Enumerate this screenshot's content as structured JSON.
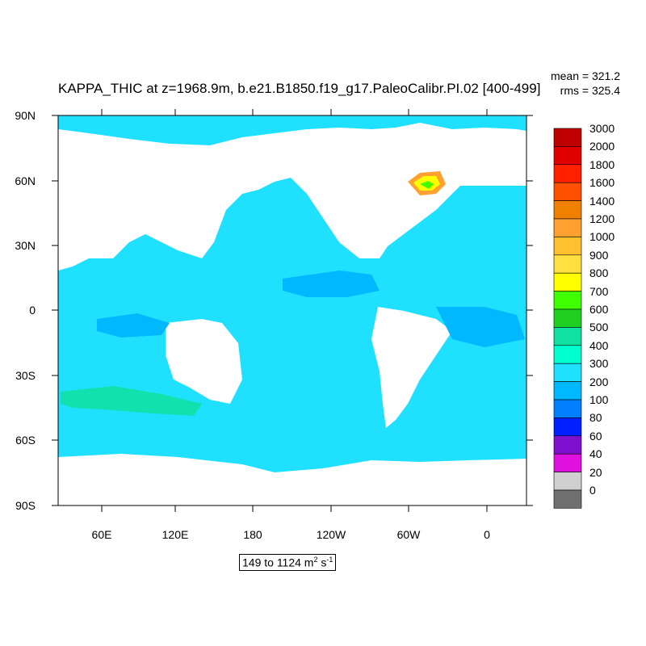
{
  "title": "KAPPA_THIC at z=1968.9m, b.e21.B1850.f19_g17.PaleoCalibr.PI.02 [400-499]",
  "stats": {
    "mean": "mean = 321.2",
    "rms": "rms = 325.4"
  },
  "latitude_labels": [
    "90N",
    "60N",
    "30N",
    "0",
    "30S",
    "60S",
    "90S"
  ],
  "longitude_labels": [
    "60E",
    "120E",
    "180",
    "120W",
    "60W",
    "0"
  ],
  "colorbar": {
    "levels": [
      "3000",
      "2000",
      "1800",
      "1600",
      "1400",
      "1200",
      "1000",
      "900",
      "800",
      "700",
      "600",
      "500",
      "400",
      "300",
      "200",
      "100",
      "80",
      "60",
      "40",
      "20",
      "0"
    ],
    "colors": [
      "#c00000",
      "#e00000",
      "#ff2000",
      "#ff5000",
      "#f08000",
      "#ffa030",
      "#ffc030",
      "#ffe040",
      "#ffff00",
      "#40ff00",
      "#20d020",
      "#10e0a0",
      "#00ffd0",
      "#20e0ff",
      "#00b8ff",
      "#0080ff",
      "#0020ff",
      "#8010d0",
      "#e010e0",
      "#d0d0d0",
      "#707070"
    ]
  },
  "field": {
    "ocean_color": "#20e0ff",
    "warm_color": "#10e0a0",
    "cool_color": "#00b8ff",
    "land_color": "#ffffff"
  },
  "range_label": {
    "text": "149 to 1124 m",
    "sup1": "2",
    "mid": " s",
    "sup2": "-1"
  }
}
